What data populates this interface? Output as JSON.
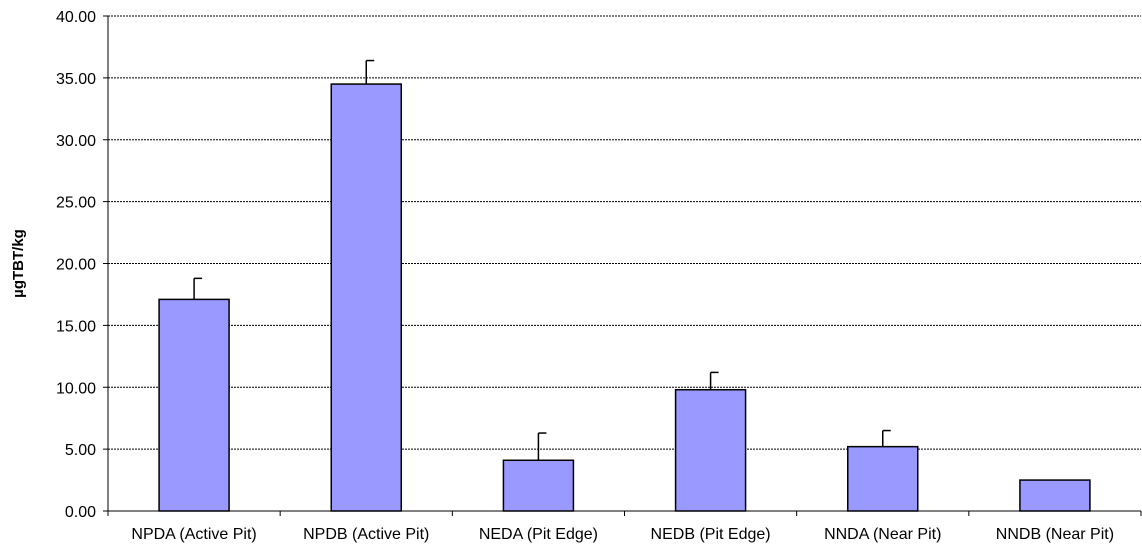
{
  "chart_data": {
    "type": "bar",
    "title": "",
    "xlabel": "",
    "ylabel": "µgTBT/kg",
    "categories": [
      "NPDA (Active Pit)",
      "NPDB (Active Pit)",
      "NEDA (Pit Edge)",
      "NEDB (Pit Edge)",
      "NNDA (Near Pit)",
      "NNDB (Near Pit)"
    ],
    "values": [
      17.1,
      34.5,
      4.1,
      9.8,
      5.2,
      2.5
    ],
    "error_bars": [
      1.7,
      1.9,
      2.2,
      1.4,
      1.3,
      0
    ],
    "ylim": [
      0,
      40
    ],
    "yticks": [
      "0.00",
      "5.00",
      "10.00",
      "15.00",
      "20.00",
      "25.00",
      "30.00",
      "35.00",
      "40.00"
    ],
    "grid": true,
    "legend": "none",
    "bar_color": "#9999FF",
    "bar_edge_color": "#000000"
  }
}
